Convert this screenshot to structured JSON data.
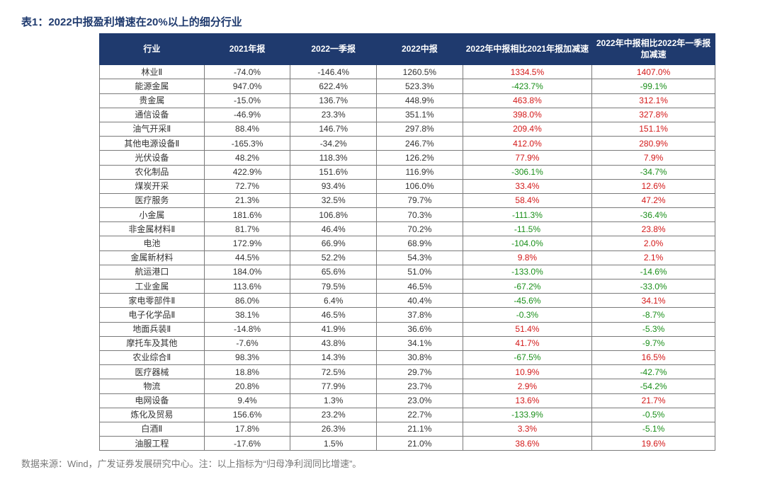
{
  "title": "表1：2022中报盈利增速在20%以上的细分行业",
  "footer": "数据来源：Wind，广发证券发展研究中心。注：以上指标为“归母净利润同比增速”。",
  "columns": [
    "行业",
    "2021年报",
    "2022一季报",
    "2022中报",
    "2022年中报相比2021年报加减速",
    "2022年中报相比2022年一季报加减速"
  ],
  "rows": [
    {
      "name": "林业Ⅱ",
      "c1": "-74.0%",
      "c2": "-146.4%",
      "c3": "1260.5%",
      "c4": "1334.5%",
      "c4c": "pos",
      "c5": "1407.0%",
      "c5c": "pos"
    },
    {
      "name": "能源金属",
      "c1": "947.0%",
      "c2": "622.4%",
      "c3": "523.3%",
      "c4": "-423.7%",
      "c4c": "neg",
      "c5": "-99.1%",
      "c5c": "neg"
    },
    {
      "name": "贵金属",
      "c1": "-15.0%",
      "c2": "136.7%",
      "c3": "448.9%",
      "c4": "463.8%",
      "c4c": "pos",
      "c5": "312.1%",
      "c5c": "pos"
    },
    {
      "name": "通信设备",
      "c1": "-46.9%",
      "c2": "23.3%",
      "c3": "351.1%",
      "c4": "398.0%",
      "c4c": "pos",
      "c5": "327.8%",
      "c5c": "pos"
    },
    {
      "name": "油气开采Ⅱ",
      "c1": "88.4%",
      "c2": "146.7%",
      "c3": "297.8%",
      "c4": "209.4%",
      "c4c": "pos",
      "c5": "151.1%",
      "c5c": "pos"
    },
    {
      "name": "其他电源设备Ⅱ",
      "c1": "-165.3%",
      "c2": "-34.2%",
      "c3": "246.7%",
      "c4": "412.0%",
      "c4c": "pos",
      "c5": "280.9%",
      "c5c": "pos"
    },
    {
      "name": "光伏设备",
      "c1": "48.2%",
      "c2": "118.3%",
      "c3": "126.2%",
      "c4": "77.9%",
      "c4c": "pos",
      "c5": "7.9%",
      "c5c": "pos"
    },
    {
      "name": "农化制品",
      "c1": "422.9%",
      "c2": "151.6%",
      "c3": "116.9%",
      "c4": "-306.1%",
      "c4c": "neg",
      "c5": "-34.7%",
      "c5c": "neg"
    },
    {
      "name": "煤炭开采",
      "c1": "72.7%",
      "c2": "93.4%",
      "c3": "106.0%",
      "c4": "33.4%",
      "c4c": "pos",
      "c5": "12.6%",
      "c5c": "pos"
    },
    {
      "name": "医疗服务",
      "c1": "21.3%",
      "c2": "32.5%",
      "c3": "79.7%",
      "c4": "58.4%",
      "c4c": "pos",
      "c5": "47.2%",
      "c5c": "pos"
    },
    {
      "name": "小金属",
      "c1": "181.6%",
      "c2": "106.8%",
      "c3": "70.3%",
      "c4": "-111.3%",
      "c4c": "neg",
      "c5": "-36.4%",
      "c5c": "neg"
    },
    {
      "name": "非金属材料Ⅱ",
      "c1": "81.7%",
      "c2": "46.4%",
      "c3": "70.2%",
      "c4": "-11.5%",
      "c4c": "neg",
      "c5": "23.8%",
      "c5c": "pos"
    },
    {
      "name": "电池",
      "c1": "172.9%",
      "c2": "66.9%",
      "c3": "68.9%",
      "c4": "-104.0%",
      "c4c": "neg",
      "c5": "2.0%",
      "c5c": "pos"
    },
    {
      "name": "金属新材料",
      "c1": "44.5%",
      "c2": "52.2%",
      "c3": "54.3%",
      "c4": "9.8%",
      "c4c": "pos",
      "c5": "2.1%",
      "c5c": "pos"
    },
    {
      "name": "航运港口",
      "c1": "184.0%",
      "c2": "65.6%",
      "c3": "51.0%",
      "c4": "-133.0%",
      "c4c": "neg",
      "c5": "-14.6%",
      "c5c": "neg"
    },
    {
      "name": "工业金属",
      "c1": "113.6%",
      "c2": "79.5%",
      "c3": "46.5%",
      "c4": "-67.2%",
      "c4c": "neg",
      "c5": "-33.0%",
      "c5c": "neg"
    },
    {
      "name": "家电零部件Ⅱ",
      "c1": "86.0%",
      "c2": "6.4%",
      "c3": "40.4%",
      "c4": "-45.6%",
      "c4c": "neg",
      "c5": "34.1%",
      "c5c": "pos"
    },
    {
      "name": "电子化学品Ⅱ",
      "c1": "38.1%",
      "c2": "46.5%",
      "c3": "37.8%",
      "c4": "-0.3%",
      "c4c": "neg",
      "c5": "-8.7%",
      "c5c": "neg"
    },
    {
      "name": "地面兵装Ⅱ",
      "c1": "-14.8%",
      "c2": "41.9%",
      "c3": "36.6%",
      "c4": "51.4%",
      "c4c": "pos",
      "c5": "-5.3%",
      "c5c": "neg"
    },
    {
      "name": "摩托车及其他",
      "c1": "-7.6%",
      "c2": "43.8%",
      "c3": "34.1%",
      "c4": "41.7%",
      "c4c": "pos",
      "c5": "-9.7%",
      "c5c": "neg"
    },
    {
      "name": "农业综合Ⅱ",
      "c1": "98.3%",
      "c2": "14.3%",
      "c3": "30.8%",
      "c4": "-67.5%",
      "c4c": "neg",
      "c5": "16.5%",
      "c5c": "pos"
    },
    {
      "name": "医疗器械",
      "c1": "18.8%",
      "c2": "72.5%",
      "c3": "29.7%",
      "c4": "10.9%",
      "c4c": "pos",
      "c5": "-42.7%",
      "c5c": "neg"
    },
    {
      "name": "物流",
      "c1": "20.8%",
      "c2": "77.9%",
      "c3": "23.7%",
      "c4": "2.9%",
      "c4c": "pos",
      "c5": "-54.2%",
      "c5c": "neg"
    },
    {
      "name": "电网设备",
      "c1": "9.4%",
      "c2": "1.3%",
      "c3": "23.0%",
      "c4": "13.6%",
      "c4c": "pos",
      "c5": "21.7%",
      "c5c": "pos"
    },
    {
      "name": "炼化及贸易",
      "c1": "156.6%",
      "c2": "23.2%",
      "c3": "22.7%",
      "c4": "-133.9%",
      "c4c": "neg",
      "c5": "-0.5%",
      "c5c": "neg"
    },
    {
      "name": "白酒Ⅱ",
      "c1": "17.8%",
      "c2": "26.3%",
      "c3": "21.1%",
      "c4": "3.3%",
      "c4c": "pos",
      "c5": "-5.1%",
      "c5c": "neg"
    },
    {
      "name": "油服工程",
      "c1": "-17.6%",
      "c2": "1.5%",
      "c3": "21.0%",
      "c4": "38.6%",
      "c4c": "pos",
      "c5": "19.6%",
      "c5c": "pos"
    }
  ]
}
